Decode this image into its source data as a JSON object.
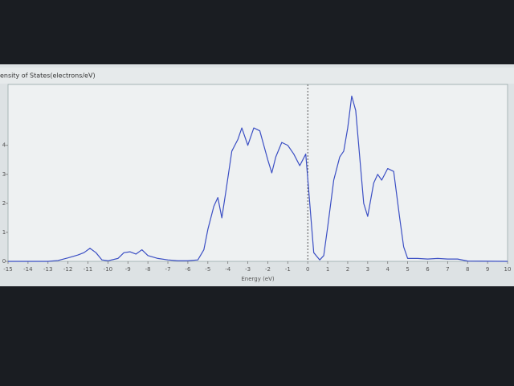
{
  "chart_data": {
    "type": "line",
    "title": "ensity of States(electrons/eV)",
    "x_label": "Energy (eV)",
    "x": [
      -15,
      -13,
      -12.5,
      -12,
      -11.5,
      -11.2,
      -10.9,
      -10.6,
      -10.3,
      -10,
      -9.5,
      -9.2,
      -8.9,
      -8.6,
      -8.3,
      -8,
      -7.5,
      -7,
      -6.5,
      -6,
      -5.5,
      -5.2,
      -5,
      -4.7,
      -4.5,
      -4.3,
      -4.1,
      -3.8,
      -3.5,
      -3.3,
      -3,
      -2.7,
      -2.4,
      -2,
      -1.8,
      -1.6,
      -1.3,
      -1,
      -0.7,
      -0.4,
      -0.1,
      0.1,
      0.3,
      0.6,
      0.8,
      1,
      1.3,
      1.6,
      1.8,
      2,
      2.2,
      2.4,
      2.6,
      2.8,
      3,
      3.3,
      3.5,
      3.7,
      4,
      4.3,
      4.6,
      4.8,
      5,
      5.5,
      6,
      6.5,
      7,
      7.5,
      8,
      10
    ],
    "series": [
      {
        "color": "#3b4fc4",
        "values": [
          0,
          0,
          0.03,
          0.12,
          0.22,
          0.3,
          0.45,
          0.3,
          0.05,
          0.02,
          0.1,
          0.3,
          0.33,
          0.25,
          0.4,
          0.2,
          0.1,
          0.05,
          0.02,
          0.02,
          0.05,
          0.4,
          1.1,
          1.9,
          2.2,
          1.5,
          2.4,
          3.8,
          4.2,
          4.6,
          4,
          4.6,
          4.5,
          3.5,
          3.05,
          3.6,
          4.1,
          4,
          3.7,
          3.3,
          3.7,
          2,
          0.3,
          0.05,
          0.2,
          1.2,
          2.8,
          3.6,
          3.8,
          4.6,
          5.7,
          5.2,
          3.6,
          2,
          1.55,
          2.7,
          3,
          2.8,
          3.2,
          3.1,
          1.5,
          0.5,
          0.1,
          0.1,
          0.08,
          0.1,
          0.08,
          0.08,
          0.01,
          0
        ]
      }
    ],
    "xlim": [
      -15,
      10
    ],
    "xticks": [
      -15,
      -14,
      -13,
      -12,
      -11,
      -10,
      -9,
      -8,
      -7,
      -6,
      -5,
      -4,
      -3,
      -2,
      -1,
      0,
      1,
      2,
      3,
      4,
      5,
      6,
      7,
      8,
      9,
      10
    ],
    "ylim": [
      0,
      6.1
    ],
    "yticks": [
      0,
      1,
      2,
      3,
      4
    ],
    "vline": 0
  }
}
